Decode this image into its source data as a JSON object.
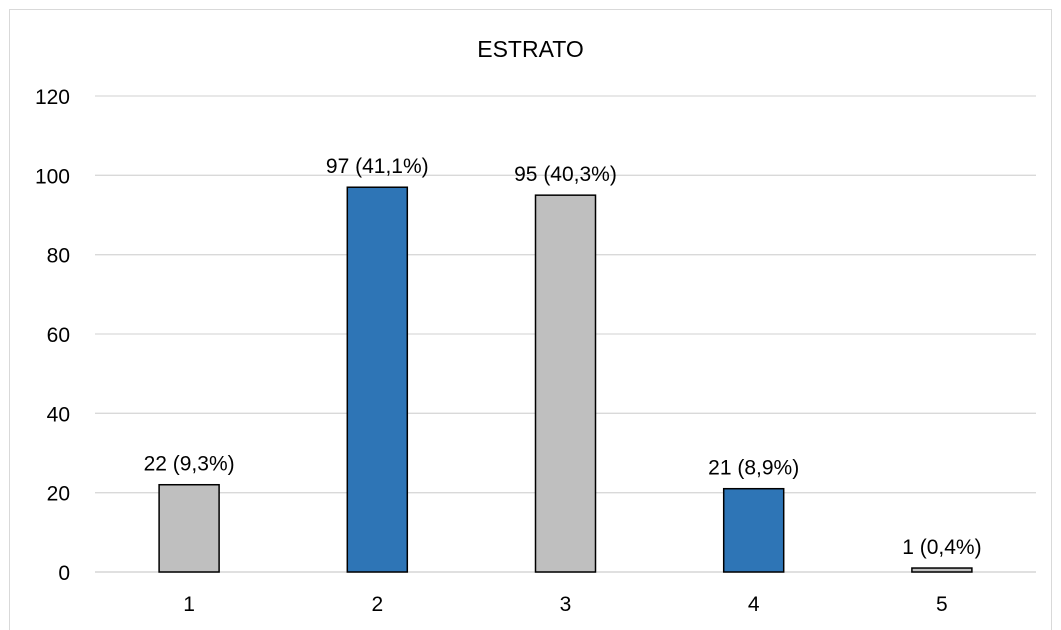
{
  "chart_data": {
    "type": "bar",
    "title": "ESTRATO",
    "xlabel": "",
    "ylabel": "",
    "categories": [
      "1",
      "2",
      "3",
      "4",
      "5"
    ],
    "values": [
      22,
      97,
      95,
      21,
      1
    ],
    "data_labels": [
      "22 (9,3%)",
      "97 (41,1%)",
      "95 (40,3%)",
      "21 (8,9%)",
      "1 (0,4%)"
    ],
    "bar_colors": [
      "#bfbfbf",
      "#2e75b6",
      "#bfbfbf",
      "#2e75b6",
      "#bfbfbf"
    ],
    "bar_border_color": "#000000",
    "grid_color": "#d9d9d9",
    "ylim": [
      0,
      120
    ],
    "yticks": [
      0,
      20,
      40,
      60,
      80,
      100,
      120
    ],
    "grid": true,
    "legend": "none"
  }
}
